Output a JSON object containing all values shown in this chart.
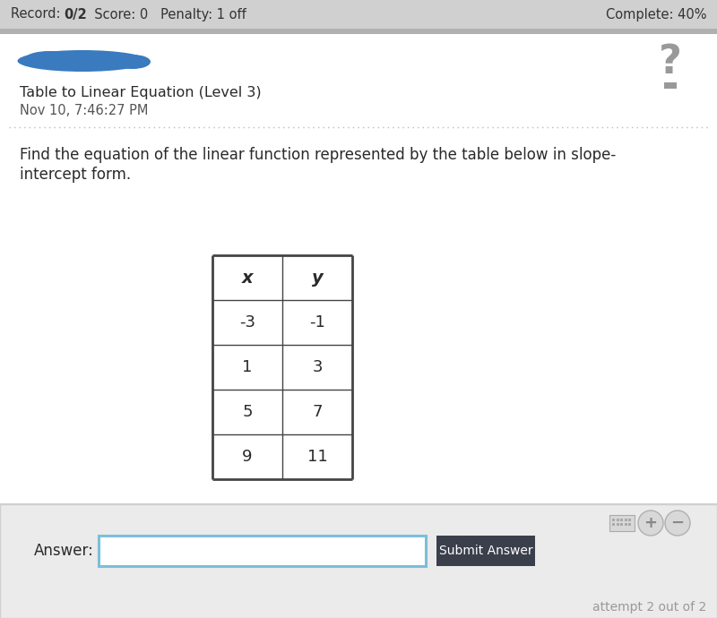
{
  "header_bar_color": "#d0d0d0",
  "header_sep_color": "#b0b0b0",
  "bg_color": "#ffffff",
  "bottom_section_bg": "#ebebeb",
  "bottom_border_color": "#d0d0d0",
  "title_line1": "Table to Linear Equation (Level 3)",
  "title_line2": "Nov 10, 7:46:27 PM",
  "question_text_line1": "Find the equation of the linear function represented by the table below in slope-",
  "question_text_line2": "intercept form.",
  "table_x_values": [
    "-3",
    "1",
    "5",
    "9"
  ],
  "table_y_values": [
    "-1",
    "3",
    "7",
    "11"
  ],
  "answer_label": "Answer:",
  "submit_button_text": "Submit Answer",
  "submit_button_color": "#3a3f4b",
  "attempt_text": "attempt 2 out of 2",
  "answer_box_border": "#7bbfda",
  "dotted_line_color": "#bbbbbb",
  "question_mark_color": "#999999",
  "blue_blob_color": "#3a7abf",
  "header_fontsize": 10.5,
  "title_fontsize": 11.5,
  "subtitle_fontsize": 10.5,
  "question_fontsize": 12,
  "table_header_fontsize": 14,
  "table_data_fontsize": 13,
  "answer_fontsize": 12,
  "submit_fontsize": 10,
  "attempt_fontsize": 10,
  "text_color": "#2a2a2a",
  "subtitle_color": "#555555",
  "header_text_color": "#333333"
}
